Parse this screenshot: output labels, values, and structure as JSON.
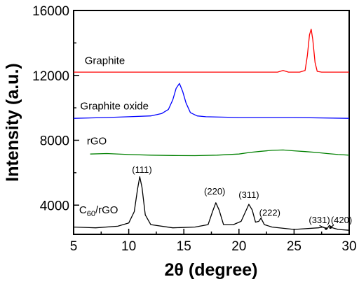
{
  "chart_data": {
    "type": "line",
    "xlabel": "2θ (degree)",
    "ylabel": "Intensity (a.u.)",
    "xlim": [
      5,
      30
    ],
    "ylim": [
      2200,
      16000
    ],
    "x_ticks": [
      5,
      10,
      15,
      20,
      25,
      30
    ],
    "y_ticks": [
      4000,
      8000,
      12000,
      16000
    ],
    "series": [
      {
        "name": "Graphite",
        "color": "#ff0000",
        "x": [
          5,
          10,
          15,
          20,
          23.5,
          24.0,
          24.5,
          25.5,
          26.0,
          26.2,
          26.4,
          26.55,
          26.7,
          26.9,
          27.1,
          27.5,
          28,
          30
        ],
        "y": [
          12200,
          12200,
          12200,
          12200,
          12200,
          12300,
          12200,
          12200,
          12300,
          13200,
          14500,
          14850,
          14200,
          12800,
          12250,
          12200,
          12200,
          12200
        ]
      },
      {
        "name": "Graphite oxide",
        "color": "#0000ff",
        "x": [
          5,
          8,
          10,
          12,
          13,
          13.6,
          14.0,
          14.3,
          14.6,
          14.9,
          15.2,
          15.6,
          16.2,
          17,
          20,
          25,
          30
        ],
        "y": [
          9350,
          9400,
          9450,
          9500,
          9650,
          9900,
          10500,
          11200,
          11500,
          11000,
          10300,
          9700,
          9500,
          9450,
          9400,
          9400,
          9350
        ]
      },
      {
        "name": "rGO",
        "color": "#008000",
        "x": [
          6.5,
          8,
          10,
          12,
          14,
          16,
          18,
          20,
          21,
          22,
          23,
          24,
          25,
          26,
          27,
          28,
          29,
          30
        ],
        "y": [
          7150,
          7180,
          7120,
          7080,
          7060,
          7050,
          7080,
          7150,
          7250,
          7320,
          7380,
          7400,
          7350,
          7300,
          7250,
          7180,
          7120,
          7080
        ]
      },
      {
        "name": "C60/rGO",
        "color": "#000000",
        "x": [
          5,
          7,
          9,
          10,
          10.5,
          10.8,
          11.0,
          11.2,
          11.5,
          12,
          14,
          16,
          17.2,
          17.6,
          17.9,
          18.2,
          18.6,
          19.5,
          20.2,
          20.6,
          20.9,
          21.2,
          21.5,
          21.8,
          22.0,
          22.3,
          23,
          25,
          27.2,
          27.6,
          28,
          28.2,
          28.5,
          29,
          30
        ],
        "y": [
          2650,
          2600,
          2700,
          2900,
          3600,
          5000,
          5750,
          5100,
          3400,
          2800,
          2600,
          2650,
          2800,
          3600,
          4150,
          3700,
          2800,
          2800,
          3000,
          3600,
          4050,
          3700,
          2950,
          3000,
          3200,
          2800,
          2650,
          2500,
          2600,
          2650,
          2550,
          2750,
          2600,
          2500,
          2450
        ]
      }
    ],
    "series_labels": [
      {
        "text": "Graphite",
        "x": 6,
        "y": 12700
      },
      {
        "text": "Graphite oxide",
        "x": 5.6,
        "y": 9900
      },
      {
        "text": "rGO",
        "x": 6.2,
        "y": 7750
      },
      {
        "text_main": "C",
        "text_sub": "60",
        "text_rest": "/rGO",
        "x": 5.5,
        "y": 3500
      }
    ],
    "peak_labels": [
      {
        "text": "(111)",
        "x": 11.2,
        "y": 6000
      },
      {
        "text": "(220)",
        "x": 17.8,
        "y": 4650
      },
      {
        "text": "(311)",
        "x": 20.9,
        "y": 4450
      },
      {
        "text": "(222)",
        "x": 22.8,
        "y": 3350
      },
      {
        "text": "(331)",
        "x": 27.3,
        "y": 2900
      },
      {
        "text": "(420)",
        "x": 29.3,
        "y": 2900
      }
    ],
    "peak_arrows": [
      {
        "from_x": 27.3,
        "from_y": 2750,
        "to_x": 27.9,
        "to_y": 2550
      },
      {
        "from_x": 28.6,
        "from_y": 2780,
        "to_x": 28.3,
        "to_y": 2620
      }
    ]
  }
}
